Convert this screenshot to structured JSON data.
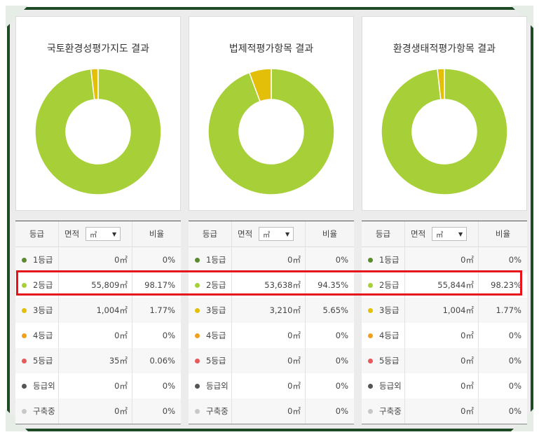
{
  "colors": {
    "frame": "#1e4a25",
    "grade1": "#5b8b2f",
    "grade2": "#a6cf38",
    "grade3": "#e3bf0a",
    "grade4": "#f0a01c",
    "grade5": "#e75a5a",
    "outside": "#555555",
    "construction": "#c8c8c8",
    "highlight": "#e8121b"
  },
  "table_header": {
    "grade": "등급",
    "area": "면적",
    "unit": "㎡",
    "ratio": "비율"
  },
  "panels": [
    {
      "title": "국토환경성평가지도 결과",
      "chart_data": {
        "type": "pie",
        "categories": [
          "1등급",
          "2등급",
          "3등급",
          "4등급",
          "5등급",
          "등급외",
          "구축중"
        ],
        "values": [
          0,
          98.17,
          1.77,
          0,
          0.06,
          0,
          0
        ],
        "title": "국토환경성평가지도 결과"
      },
      "rows": [
        {
          "grade": "1등급",
          "area": "0㎡",
          "ratio": "0%",
          "color": "#5b8b2f"
        },
        {
          "grade": "2등급",
          "area": "55,809㎡",
          "ratio": "98.17%",
          "color": "#a6cf38"
        },
        {
          "grade": "3등급",
          "area": "1,004㎡",
          "ratio": "1.77%",
          "color": "#e3bf0a"
        },
        {
          "grade": "4등급",
          "area": "0㎡",
          "ratio": "0%",
          "color": "#f0a01c"
        },
        {
          "grade": "5등급",
          "area": "35㎡",
          "ratio": "0.06%",
          "color": "#e75a5a"
        },
        {
          "grade": "등급외",
          "area": "0㎡",
          "ratio": "0%",
          "color": "#555555"
        },
        {
          "grade": "구축중",
          "area": "0㎡",
          "ratio": "0%",
          "color": "#c8c8c8"
        }
      ]
    },
    {
      "title": "법제적평가항목 결과",
      "chart_data": {
        "type": "pie",
        "categories": [
          "1등급",
          "2등급",
          "3등급",
          "4등급",
          "5등급",
          "등급외",
          "구축중"
        ],
        "values": [
          0,
          94.35,
          5.65,
          0,
          0,
          0,
          0
        ],
        "title": "법제적평가항목 결과"
      },
      "rows": [
        {
          "grade": "1등급",
          "area": "0㎡",
          "ratio": "0%",
          "color": "#5b8b2f"
        },
        {
          "grade": "2등급",
          "area": "53,638㎡",
          "ratio": "94.35%",
          "color": "#a6cf38"
        },
        {
          "grade": "3등급",
          "area": "3,210㎡",
          "ratio": "5.65%",
          "color": "#e3bf0a"
        },
        {
          "grade": "4등급",
          "area": "0㎡",
          "ratio": "0%",
          "color": "#f0a01c"
        },
        {
          "grade": "5등급",
          "area": "0㎡",
          "ratio": "0%",
          "color": "#e75a5a"
        },
        {
          "grade": "등급외",
          "area": "0㎡",
          "ratio": "0%",
          "color": "#555555"
        },
        {
          "grade": "구축중",
          "area": "0㎡",
          "ratio": "0%",
          "color": "#c8c8c8"
        }
      ]
    },
    {
      "title": "환경생태적평가항목 결과",
      "chart_data": {
        "type": "pie",
        "categories": [
          "1등급",
          "2등급",
          "3등급",
          "4등급",
          "5등급",
          "등급외",
          "구축중"
        ],
        "values": [
          0,
          98.23,
          1.77,
          0,
          0,
          0,
          0
        ],
        "title": "환경생태적평가항목 결과"
      },
      "rows": [
        {
          "grade": "1등급",
          "area": "0㎡",
          "ratio": "0%",
          "color": "#5b8b2f"
        },
        {
          "grade": "2등급",
          "area": "55,844㎡",
          "ratio": "98.23%",
          "color": "#a6cf38"
        },
        {
          "grade": "3등급",
          "area": "1,004㎡",
          "ratio": "1.77%",
          "color": "#e3bf0a"
        },
        {
          "grade": "4등급",
          "area": "0㎡",
          "ratio": "0%",
          "color": "#f0a01c"
        },
        {
          "grade": "5등급",
          "area": "0㎡",
          "ratio": "0%",
          "color": "#e75a5a"
        },
        {
          "grade": "등급외",
          "area": "0㎡",
          "ratio": "0%",
          "color": "#555555"
        },
        {
          "grade": "구축중",
          "area": "0㎡",
          "ratio": "0%",
          "color": "#c8c8c8"
        }
      ]
    }
  ]
}
